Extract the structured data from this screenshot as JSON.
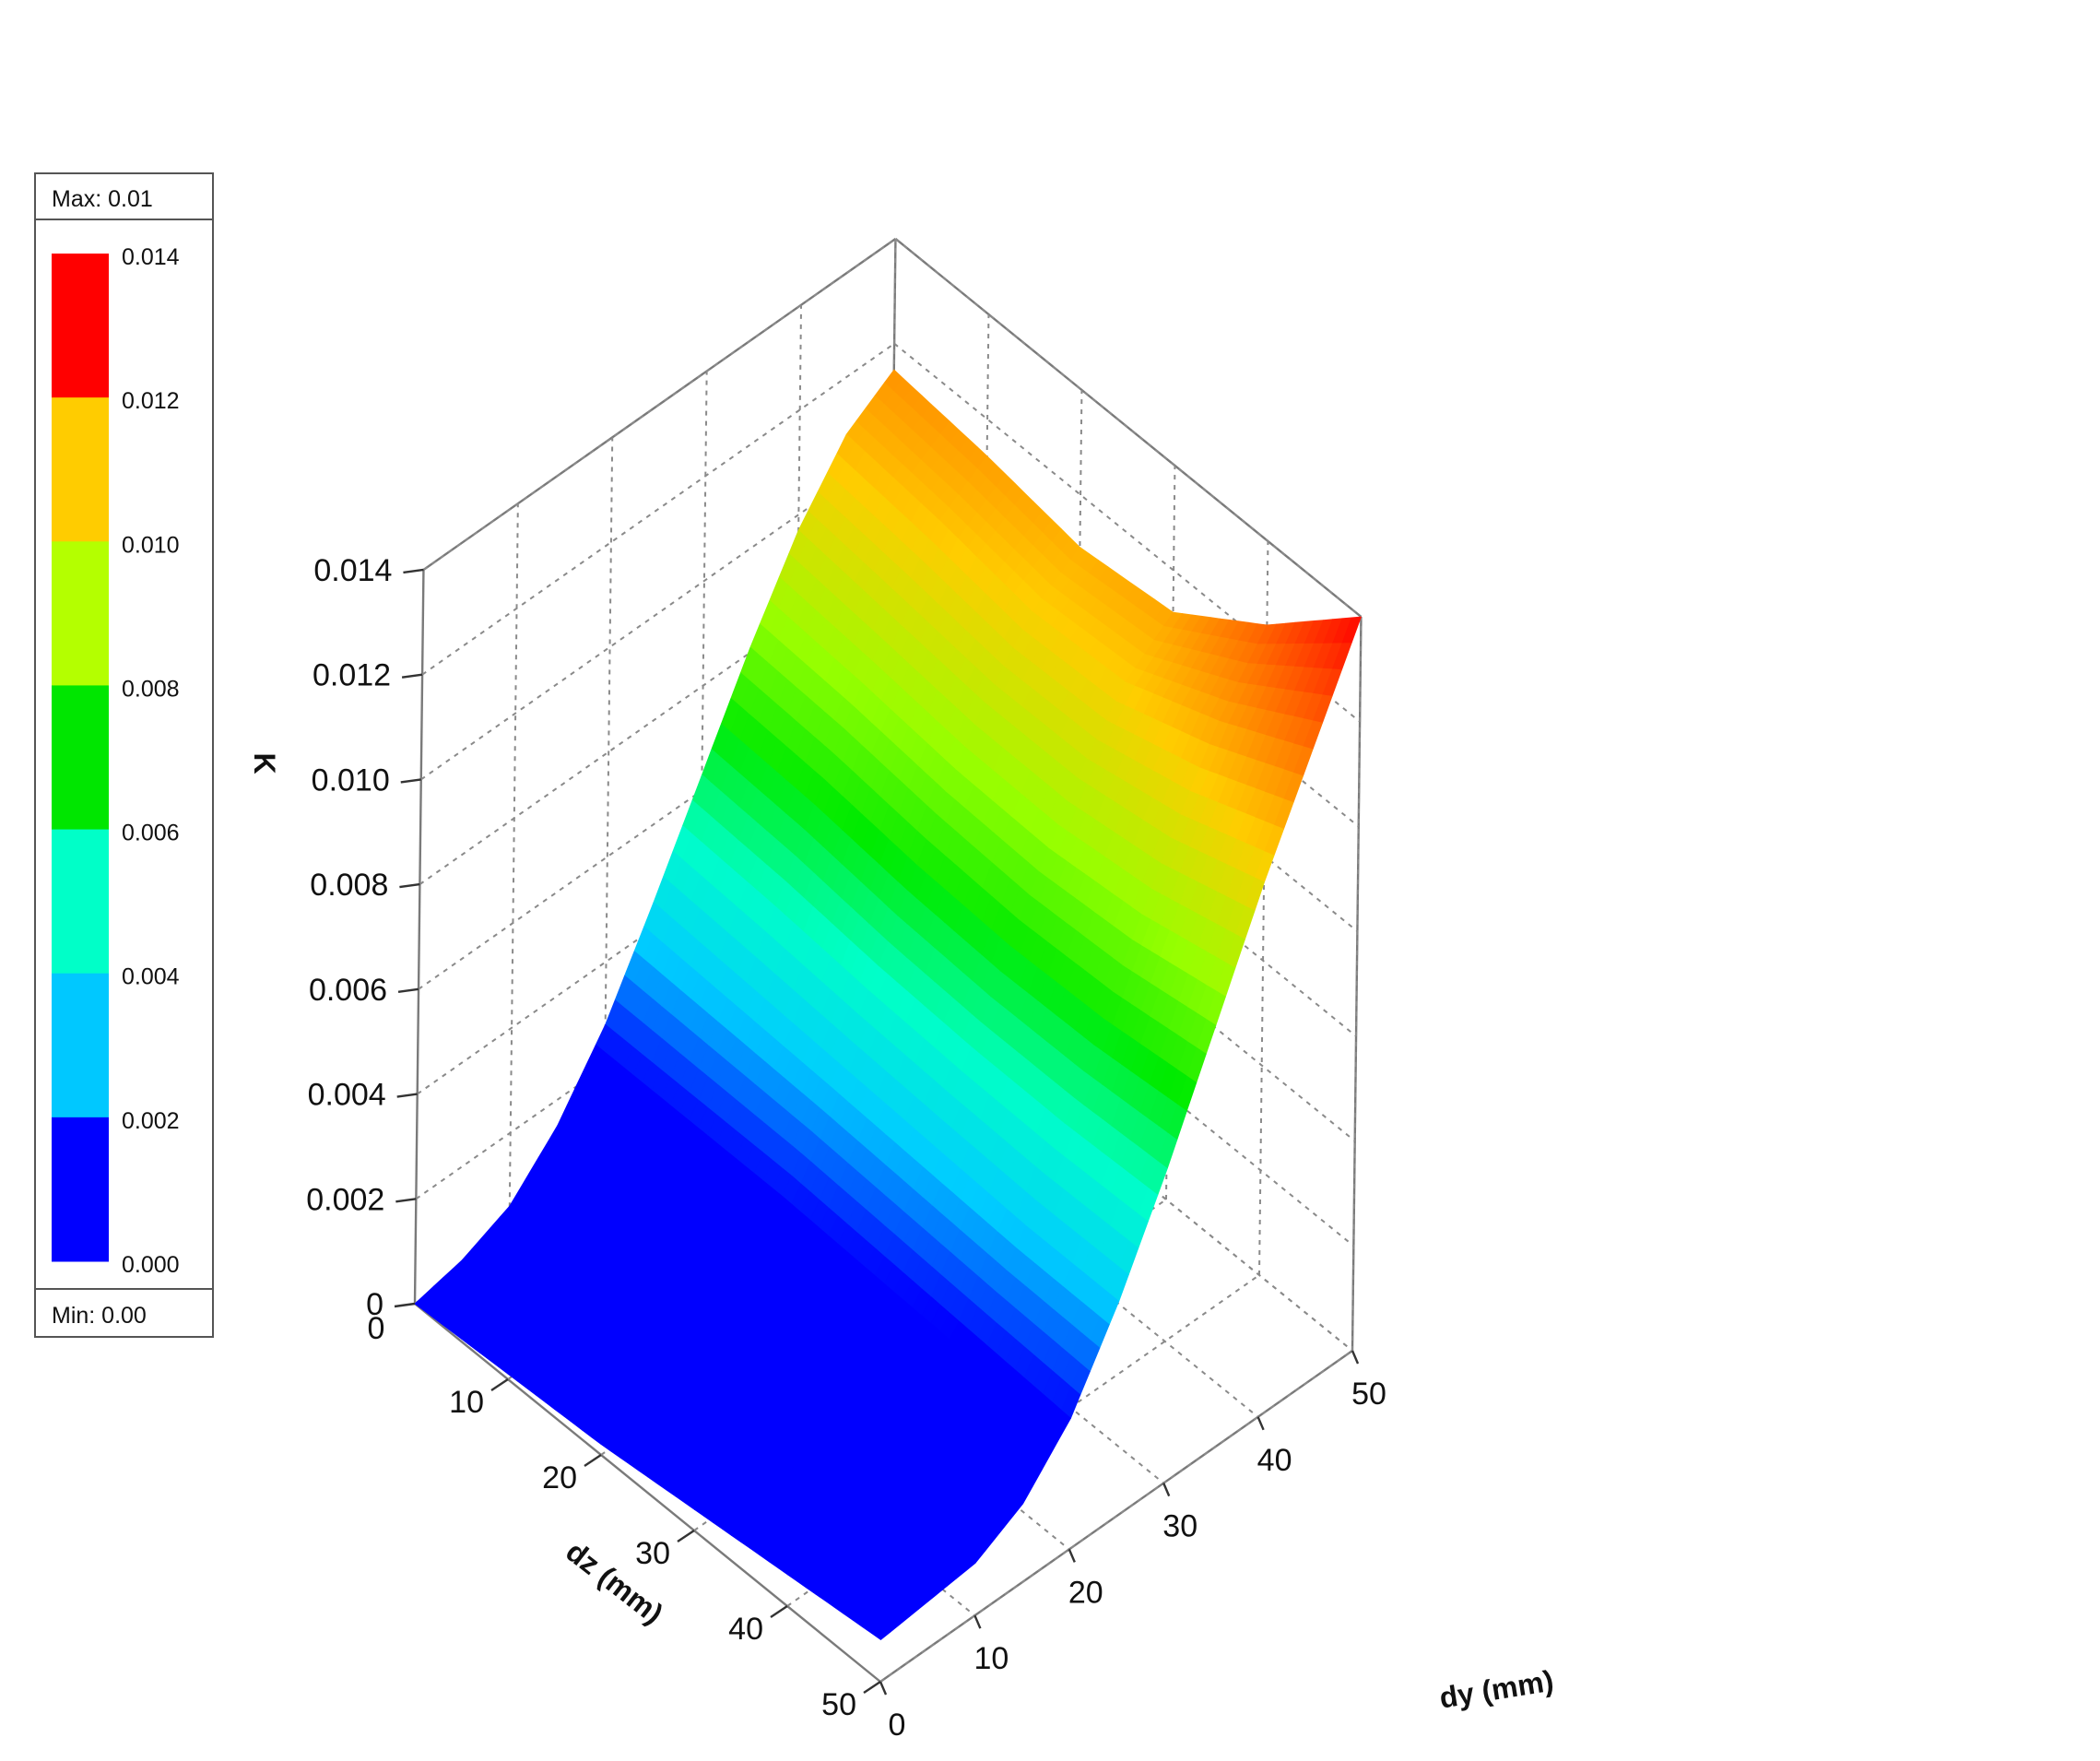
{
  "chart_data": {
    "type": "surface",
    "z_label": "K",
    "x_label": "dy (mm)",
    "y_label": "dz (mm)",
    "x_ticks": [
      "0",
      "10",
      "20",
      "30",
      "40",
      "50"
    ],
    "y_ticks": [
      "0",
      "10",
      "20",
      "30",
      "40",
      "50"
    ],
    "z_ticks": [
      "0",
      "0.002",
      "0.004",
      "0.006",
      "0.008",
      "0.010",
      "0.012",
      "0.014"
    ],
    "x_range": [
      0,
      50
    ],
    "y_range": [
      0,
      50
    ],
    "z_range": [
      0,
      0.014
    ],
    "grid": true,
    "dy": [
      0,
      5,
      10,
      15,
      20,
      25,
      30,
      35,
      40,
      45,
      50
    ],
    "dz": [
      0,
      10,
      20,
      30,
      40,
      50
    ],
    "K": [
      [
        0.0,
        0.0002,
        0.0006,
        0.0015,
        0.0028,
        0.0045,
        0.0063,
        0.0081,
        0.0097,
        0.0109,
        0.0115
      ],
      [
        0.0001,
        0.0003,
        0.0006,
        0.0015,
        0.0028,
        0.0044,
        0.0062,
        0.008,
        0.0095,
        0.0107,
        0.0113
      ],
      [
        0.0002,
        0.0004,
        0.0007,
        0.0015,
        0.0028,
        0.0043,
        0.006,
        0.0078,
        0.0093,
        0.0104,
        0.011
      ],
      [
        0.0004,
        0.0005,
        0.0008,
        0.0015,
        0.0027,
        0.0042,
        0.0059,
        0.0077,
        0.0093,
        0.0105,
        0.0112
      ],
      [
        0.0006,
        0.0007,
        0.0009,
        0.0015,
        0.0026,
        0.0041,
        0.0059,
        0.0078,
        0.0096,
        0.0112,
        0.0124
      ],
      [
        0.0008,
        0.0009,
        0.001,
        0.0015,
        0.0025,
        0.0041,
        0.006,
        0.0081,
        0.0102,
        0.0121,
        0.014
      ]
    ],
    "legend": {
      "max_label": "Max: 0.01",
      "min_label": "Min: 0.00",
      "levels": [
        "0.014",
        "0.012",
        "0.010",
        "0.008",
        "0.006",
        "0.004",
        "0.002",
        "0.000"
      ],
      "colors": [
        "#ff0000",
        "#ffcc00",
        "#b4ff00",
        "#00e600",
        "#00ffc8",
        "#00c8ff",
        "#0000ff"
      ]
    }
  }
}
